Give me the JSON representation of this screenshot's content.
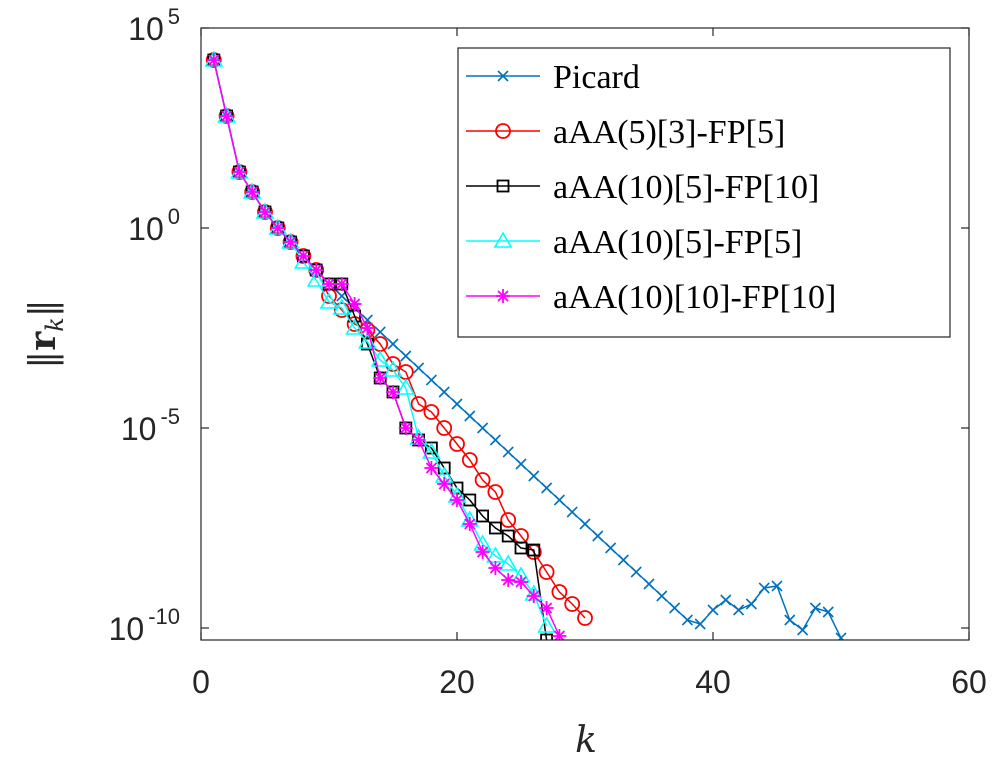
{
  "chart_data": {
    "type": "line",
    "title": "",
    "xlabel": "k",
    "ylabel": "||r_k||",
    "xlim": [
      0,
      60
    ],
    "ylim_log10": [
      -10.3,
      5
    ],
    "yscale": "log",
    "grid": false,
    "legend_position": "top-right",
    "x_ticks": [
      "0",
      "20",
      "40",
      "60"
    ],
    "y_ticks": [
      {
        "base": "10",
        "exp": "5",
        "log10": 5
      },
      {
        "base": "10",
        "exp": "0",
        "log10": 0
      },
      {
        "base": "10",
        "exp": "-5",
        "log10": -5
      },
      {
        "base": "10",
        "exp": "-10",
        "log10": -10
      }
    ],
    "series": [
      {
        "name": "Picard",
        "color": "#0072BD",
        "marker": "x",
        "x": [
          1,
          2,
          3,
          4,
          5,
          6,
          7,
          8,
          9,
          10,
          11,
          12,
          13,
          14,
          15,
          16,
          17,
          18,
          19,
          20,
          21,
          22,
          23,
          24,
          25,
          26,
          27,
          28,
          29,
          30,
          31,
          32,
          33,
          34,
          35,
          36,
          37,
          38,
          39,
          40,
          41,
          42,
          43,
          44,
          45,
          46,
          47,
          48,
          49,
          50
        ],
        "log10": [
          4.2,
          2.8,
          1.4,
          0.9,
          0.4,
          0.0,
          -0.35,
          -0.7,
          -1.05,
          -1.4,
          -1.7,
          -2.0,
          -2.3,
          -2.6,
          -2.9,
          -3.2,
          -3.5,
          -3.8,
          -4.1,
          -4.4,
          -4.7,
          -5.0,
          -5.3,
          -5.6,
          -5.9,
          -6.2,
          -6.5,
          -6.8,
          -7.1,
          -7.4,
          -7.7,
          -8.0,
          -8.3,
          -8.6,
          -8.9,
          -9.2,
          -9.5,
          -9.8,
          -9.9,
          -9.55,
          -9.3,
          -9.55,
          -9.4,
          -9.0,
          -8.95,
          -9.8,
          -10.05,
          -9.5,
          -9.6,
          -10.25
        ]
      },
      {
        "name": "aAA(5)[3]-FP[5]",
        "color": "#FF0000",
        "marker": "o",
        "x": [
          1,
          2,
          3,
          4,
          5,
          6,
          7,
          8,
          9,
          10,
          11,
          12,
          13,
          14,
          15,
          16,
          17,
          18,
          19,
          20,
          21,
          22,
          23,
          24,
          25,
          26,
          27,
          28,
          29,
          30
        ],
        "log10": [
          4.2,
          2.8,
          1.4,
          0.9,
          0.4,
          0.0,
          -0.35,
          -0.7,
          -1.05,
          -1.7,
          -2.05,
          -2.4,
          -2.55,
          -2.9,
          -3.4,
          -3.6,
          -4.4,
          -4.6,
          -5.0,
          -5.4,
          -5.8,
          -6.3,
          -6.6,
          -7.3,
          -7.7,
          -8.1,
          -8.6,
          -9.1,
          -9.4,
          -9.75
        ]
      },
      {
        "name": "aAA(10)[5]-FP[10]",
        "color": "#000000",
        "marker": "s",
        "x": [
          1,
          2,
          3,
          4,
          5,
          6,
          7,
          8,
          9,
          10,
          11,
          12,
          13,
          14,
          15,
          16,
          17,
          18,
          19,
          20,
          21,
          22,
          23,
          24,
          25,
          26,
          27
        ],
        "log10": [
          4.2,
          2.8,
          1.4,
          0.9,
          0.4,
          0.0,
          -0.35,
          -0.7,
          -1.05,
          -1.4,
          -1.4,
          -2.2,
          -2.9,
          -3.75,
          -4.1,
          -5.0,
          -5.3,
          -5.5,
          -6.0,
          -6.5,
          -6.8,
          -7.2,
          -7.5,
          -7.7,
          -8.0,
          -8.05,
          -10.3
        ]
      },
      {
        "name": "aAA(10)[5]-FP[5]",
        "color": "#00FFFF",
        "marker": "^",
        "x": [
          1,
          2,
          3,
          4,
          5,
          6,
          7,
          8,
          9,
          10,
          11,
          12,
          13,
          14,
          15,
          16,
          17,
          18,
          19,
          20,
          21,
          22,
          23,
          24,
          25,
          26,
          27
        ],
        "log10": [
          4.2,
          2.8,
          1.4,
          0.9,
          0.4,
          0.0,
          -0.35,
          -0.85,
          -1.3,
          -1.85,
          -2.0,
          -2.5,
          -2.85,
          -3.3,
          -3.55,
          -4.0,
          -5.25,
          -5.6,
          -6.2,
          -6.7,
          -7.3,
          -7.9,
          -8.2,
          -8.4,
          -8.7,
          -9.15,
          -9.95
        ]
      },
      {
        "name": "aAA(10)[10]-FP[10]",
        "color": "#FF00FF",
        "marker": "*",
        "x": [
          1,
          2,
          3,
          4,
          5,
          6,
          7,
          8,
          9,
          10,
          11,
          12,
          13,
          14,
          15,
          16,
          17,
          18,
          19,
          20,
          21,
          22,
          23,
          24,
          25,
          26,
          27,
          28
        ],
        "log10": [
          4.2,
          2.8,
          1.4,
          0.9,
          0.4,
          0.0,
          -0.35,
          -0.7,
          -1.05,
          -1.4,
          -1.4,
          -1.9,
          -2.5,
          -3.75,
          -4.1,
          -5.0,
          -5.3,
          -6.0,
          -6.4,
          -6.8,
          -7.4,
          -8.1,
          -8.5,
          -8.8,
          -8.85,
          -9.2,
          -9.5,
          -10.2
        ]
      }
    ]
  }
}
